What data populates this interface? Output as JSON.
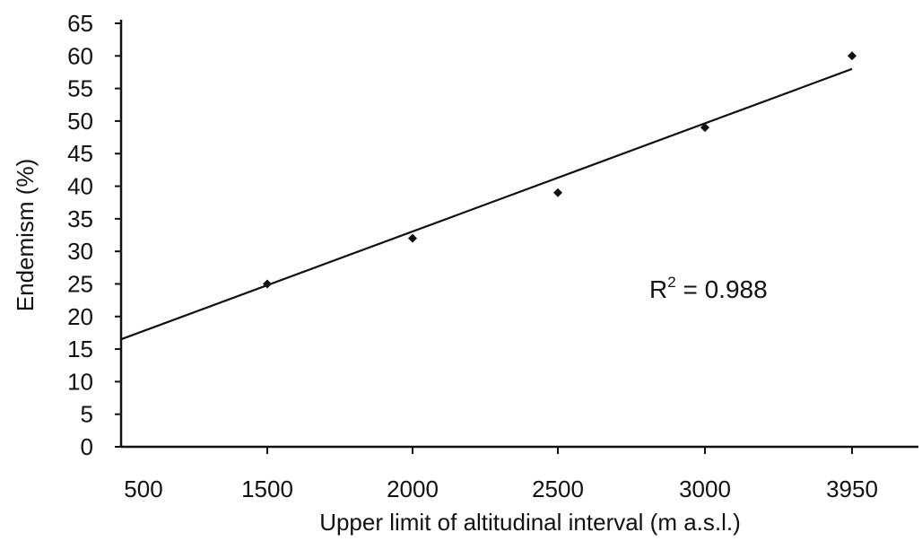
{
  "chart_data": {
    "type": "scatter",
    "title": "",
    "xlabel": "Upper limit of altitudinal interval (m a.s.l.)",
    "ylabel": "Endemism (%)",
    "x_tick_labels": [
      "500",
      "1500",
      "2000",
      "2500",
      "3000",
      "3950"
    ],
    "y_ticks": [
      0,
      5,
      10,
      15,
      20,
      25,
      30,
      35,
      40,
      45,
      50,
      55,
      60,
      65
    ],
    "ylim": [
      0,
      65
    ],
    "grid": false,
    "series": [
      {
        "x": [
          "1500",
          "2000",
          "2500",
          "3000",
          "3950"
        ],
        "y": [
          25,
          32,
          39,
          49,
          60
        ]
      }
    ],
    "trendline": {
      "type": "linear",
      "x_start": "500",
      "y_start": 16.5,
      "x_end": "3950",
      "y_end": 58
    },
    "annotations": [
      {
        "base": "R",
        "sup": "2",
        "text": " = 0.988"
      }
    ]
  },
  "colors": {
    "ink": "#111111",
    "background": "#ffffff"
  }
}
